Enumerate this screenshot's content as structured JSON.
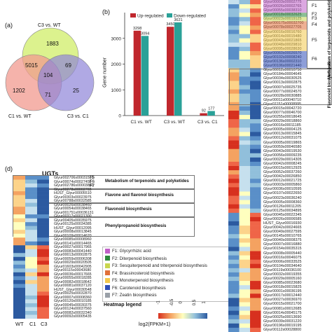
{
  "panel_a": {
    "letter": "(a)",
    "sets": [
      {
        "name": "C3 vs. WT",
        "color": "#d6f07a"
      },
      {
        "name": "C1 vs. WT",
        "color": "#f29a8f"
      },
      {
        "name": "C3 vs. C1",
        "color": "#8f84d8"
      }
    ],
    "regions": {
      "only_c3wt": "1883",
      "only_c1wt": "1202",
      "only_c3c1": "25",
      "c3wt_c1wt": "5015",
      "c3wt_c3c1": "69",
      "c1wt_c3c1": "71",
      "all": "104"
    }
  },
  "panel_b": {
    "letter": "(b)",
    "ylabel": "Gene number",
    "legend": [
      "Up-regulated",
      "Down-regulated"
    ]
  },
  "panel_d": {
    "letter": "(d)",
    "title": "UGTs",
    "groups": [
      {
        "label": "Metabolism of terpenoids and polyketides"
      },
      {
        "label": "Flavone and flavonol biosynthesis"
      },
      {
        "label": "Flavonoid biosynthesis"
      },
      {
        "label": "Phenylpropanoid biosynthesis"
      }
    ],
    "f_labels": [
      "F5",
      "F6",
      "F7"
    ],
    "columns": [
      "WT",
      "C1",
      "C3"
    ],
    "genes": [
      "Glyur002706s00031510",
      "Glyur00074s00027455",
      "Glyur002786s00003860",
      "Glyur00278s00002765",
      "HUST_Glyur00005510",
      "Glyur00303s00023975",
      "Glyur00788s00032585",
      "Glyur00026s00038460",
      "Glyur00054s00038465",
      "Glyur001751s00036131",
      "Glyur00317s00021300",
      "Glyur00405s00035975",
      "Glyur00125s00034385",
      "HUST_Glyur00012095",
      "Glyur00008s00013845",
      "Glyur00109s00014620",
      "Glyur00085s00008960",
      "Glyur00141s00014465",
      "Glyur00027s00017965",
      "Glyur00083s00041440",
      "Glyur00013s00002875",
      "Glyur00059s00006308",
      "Glyur00029s00020505",
      "Glyur01603s00042905",
      "Glyur00115s00043680",
      "Glyur00036s00017665",
      "Glyur00055s00018285",
      "Glyur00082s00018642",
      "Glyur00081s00037120",
      "HUST_Glyur00030548",
      "Glyur00025s00032870",
      "Glyur00007s00008360",
      "Glyur00120s00010185",
      "Glyur00045s00030375",
      "Glyur00124s00037560",
      "Glyur00082s00032340",
      "Glyur00092s00005435"
    ],
    "legend_title": "Heatmap legend",
    "legend_axis": "log2(FPKM+1)",
    "legend_ticks": [
      "-1",
      "-0.5",
      "0",
      "0.5",
      "1"
    ]
  },
  "func_legend": [
    {
      "tag": "F1:",
      "label": "Glycyrrhizic acid",
      "color": "#c060c8"
    },
    {
      "tag": "F2:",
      "label": "Diterpenoid biosynthesis",
      "color": "#2c8a3c"
    },
    {
      "tag": "F3:",
      "label": "Sesquiterpenoid and triterpenoid biosynthesis",
      "color": "#c9d64e"
    },
    {
      "tag": "F4:",
      "label": "Brassinosteroid biosynthesis",
      "color": "#e0703a"
    },
    {
      "tag": "F5:",
      "label": "Monoterpenoid biosynthesis",
      "color": "#f3c94c"
    },
    {
      "tag": "F6:",
      "label": "Carotenoid biosynthesis",
      "color": "#2f4fb8"
    },
    {
      "tag": "F7:",
      "label": "Zeatin biosynthesis",
      "color": "#9aa0a8"
    }
  ],
  "right_panel": {
    "f_labels": [
      "F1",
      "F2",
      "F3",
      "F4",
      "F5",
      "F6"
    ],
    "side_label_1": "Metabolism of terpenoids and polyketides",
    "side_label_2": "Flavonoid biosynthesis",
    "genes": [
      "Glyur00003s00002775",
      "Glyur00026s00002765",
      "Glyur00055s00038310",
      "Glyur00018s00032625",
      "Glyur00023s00019125",
      "Glyur000175s00032700",
      "Glyur00078s00027705",
      "Glyur00016s00016760",
      "Glyur00014s00015480",
      "Glyur00043s00021865",
      "Glyur00048s00029810",
      "Glyur00095s00028630",
      "Glyur00060s00026570",
      "Glyur00102s00008240",
      "Glyur00136s00002310",
      "Glyur00106s00021440",
      "Glyur00012s00010750",
      "Glyur00184s00004645",
      "Glyur00034s00030525",
      "Glyur00013s00002875",
      "Glyur00007s00025735",
      "Glyur00077s00024570",
      "Glyur00028s00030885",
      "Glyur00011s00040710",
      "Glyur01151s00008995",
      "Glyur00015s00042720",
      "Glyur00077s00046700",
      "Glyur00255s00018645",
      "Glyur00029s00018860",
      "Glyur00016s00011185",
      "Glyur00005s00004125",
      "Glyur00013s00015845",
      "Glyur00012s00031075",
      "Glyur00005s00019865",
      "Glyur00059s00046580",
      "Glyur00043s00019530",
      "Glyur00056s00009235",
      "Glyur00029s00014305",
      "Glyur00042s00008245",
      "Glyur00015s00012925",
      "Glyur00052s00037260",
      "Glyur00042s00026850",
      "Glyur00012s00021725",
      "Glyur00003s00005860",
      "Glyur00036s00010595",
      "Glyur00107s00022650",
      "Glyur00023s00036240",
      "Glyur00005s00008360",
      "Glyur00126s00011205",
      "Glyur00125s00034895",
      "Glyur00045s00022345",
      "Glyur00026s00006585",
      "HUST_Glyur00016930",
      "Glyur00042s00024665",
      "Glyur00049s00027595",
      "Glyur00145s00010765",
      "Glyur00040s00008375",
      "Glyur00007s00016880",
      "Glyur00154s00035315",
      "Glyur00008s00005440",
      "Glyur00016s00046075",
      "Glyur00006s00033525",
      "Glyur00104s00034640",
      "Glyur00119s00036100",
      "Glyur00032s00019355",
      "Glyur00029s00005160",
      "Glyur00085s00023680",
      "Glyur00018s00015825",
      "Glyur00001s00036195",
      "Glyur00017s00012440",
      "Glyur00027s00036970",
      "Glyur00015s00021700",
      "Glyur00081s00012685",
      "Glyur00014s00045175",
      "Glyur00025s00013690",
      "Glyur00039s00031220",
      "Glyur00196s00019195",
      "Glyur00112s00028800"
    ]
  }
}
